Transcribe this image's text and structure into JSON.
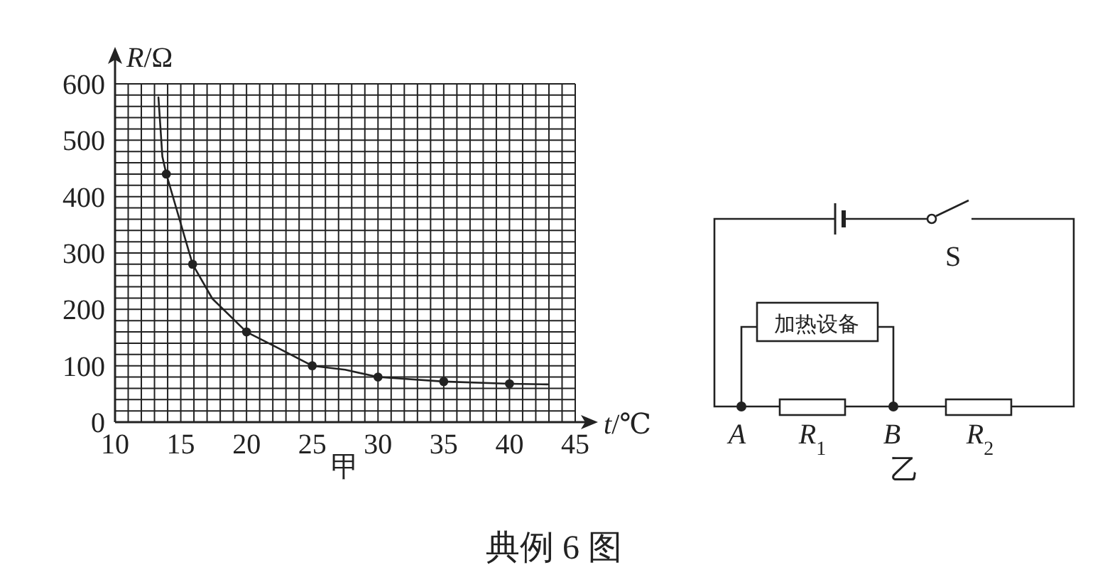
{
  "chart_data": [
    {
      "type": "line",
      "xlabel": "*t*/℃",
      "ylabel": "*R*/Ω",
      "annotations": [
        "甲",
        "典例 6 图"
      ],
      "grid": true,
      "xlim": [
        10,
        45
      ],
      "xticks": [
        10,
        {
          "value": 11,
          "label": null
        },
        {
          "value": 12,
          "label": null
        },
        {
          "value": 13,
          "label": null
        },
        {
          "value": 14,
          "label": null
        },
        15,
        {
          "value": 16,
          "label": null
        },
        {
          "value": 17,
          "label": null
        },
        {
          "value": 18,
          "label": null
        },
        {
          "value": 19,
          "label": null
        },
        20,
        {
          "value": 21,
          "label": null
        },
        {
          "value": 22,
          "label": null
        },
        {
          "value": 23,
          "label": null
        },
        {
          "value": 24,
          "label": null
        },
        25,
        {
          "value": 26,
          "label": null
        },
        {
          "value": 27,
          "label": null
        },
        {
          "value": 28,
          "label": null
        },
        {
          "value": 29,
          "label": null
        },
        30,
        {
          "value": 31,
          "label": null
        },
        {
          "value": 32,
          "label": null
        },
        {
          "value": 33,
          "label": null
        },
        {
          "value": 34,
          "label": null
        },
        35,
        {
          "value": 36,
          "label": null
        },
        {
          "value": 37,
          "label": null
        },
        {
          "value": 38,
          "label": null
        },
        {
          "value": 39,
          "label": null
        },
        40,
        {
          "value": 41,
          "label": null
        },
        {
          "value": 42,
          "label": null
        },
        {
          "value": 43,
          "label": null
        },
        {
          "value": 44,
          "label": null
        },
        45
      ],
      "ylim": [
        0,
        600
      ],
      "yticks": [
        0,
        {
          "value": 20,
          "label": null
        },
        {
          "value": 40,
          "label": null
        },
        {
          "value": 60,
          "label": null
        },
        {
          "value": 80,
          "label": null
        },
        100,
        {
          "value": 120,
          "label": null
        },
        {
          "value": 140,
          "label": null
        },
        {
          "value": 160,
          "label": null
        },
        {
          "value": 180,
          "label": null
        },
        200,
        {
          "value": 220,
          "label": null
        },
        {
          "value": 240,
          "label": null
        },
        {
          "value": 260,
          "label": null
        },
        {
          "value": 280,
          "label": null
        },
        300,
        {
          "value": 320,
          "label": null
        },
        {
          "value": 340,
          "label": null
        },
        {
          "value": 360,
          "label": null
        },
        {
          "value": 380,
          "label": null
        },
        400,
        {
          "value": 420,
          "label": null
        },
        {
          "value": 440,
          "label": null
        },
        {
          "value": 460,
          "label": null
        },
        {
          "value": 480,
          "label": null
        },
        500,
        {
          "value": 520,
          "label": null
        },
        {
          "value": 540,
          "label": null
        },
        {
          "value": 560,
          "label": null
        },
        {
          "value": 580,
          "label": null
        },
        600
      ],
      "series": [
        {
          "type": "scatter",
          "color": "#222222",
          "marker": "circle",
          "x": [
            13.9,
            15.9,
            20,
            25,
            30,
            35,
            40
          ],
          "values": [
            440,
            280,
            160,
            100,
            80,
            72,
            68
          ]
        },
        {
          "type": "line",
          "color": "#222222",
          "marker": "none",
          "line_style": "solid",
          "x": [
            13.3,
            13.6,
            13.9,
            15.9,
            17.4,
            20,
            22.1,
            25,
            27.5,
            30,
            35,
            40,
            42.9
          ],
          "values": [
            576,
            471,
            440,
            280,
            219,
            160,
            135,
            100,
            93,
            80,
            72,
            68,
            67
          ]
        }
      ]
    },
    {
      "type": "other",
      "annotations": [
        "S",
        "加热设备",
        "A",
        "*R*$_{1}$",
        "B",
        "*R*$_{2}$",
        "乙"
      ]
    }
  ]
}
